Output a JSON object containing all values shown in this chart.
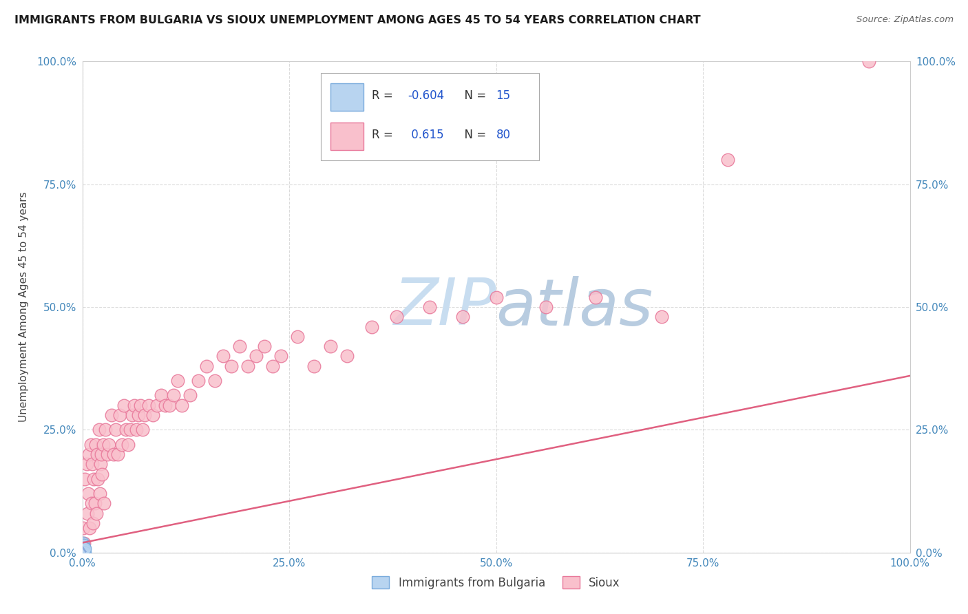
{
  "title": "IMMIGRANTS FROM BULGARIA VS SIOUX UNEMPLOYMENT AMONG AGES 45 TO 54 YEARS CORRELATION CHART",
  "source": "Source: ZipAtlas.com",
  "ylabel": "Unemployment Among Ages 45 to 54 years",
  "xlim": [
    0.0,
    1.0
  ],
  "ylim": [
    0.0,
    1.0
  ],
  "xtick_vals": [
    0.0,
    0.25,
    0.5,
    0.75,
    1.0
  ],
  "xtick_labels": [
    "0.0%",
    "25.0%",
    "50.0%",
    "75.0%",
    "100.0%"
  ],
  "ytick_vals": [
    0.0,
    0.25,
    0.5,
    0.75,
    1.0
  ],
  "ytick_labels": [
    "0.0%",
    "25.0%",
    "50.0%",
    "75.0%",
    "100.0%"
  ],
  "r_bulgaria": -0.604,
  "n_bulgaria": 15,
  "r_sioux": 0.615,
  "n_sioux": 80,
  "bulgaria_face": "#b8d4f0",
  "bulgaria_edge": "#7aabdc",
  "sioux_face": "#f9c0cc",
  "sioux_edge": "#e8789a",
  "sioux_line_color": "#e06080",
  "bulgaria_line_color": "#88aadd",
  "watermark_color": "#d0e4f4",
  "grid_color": "#d8d8d8",
  "bg_color": "#ffffff",
  "tick_color": "#4488bb",
  "legend_label_bulgaria": "Immigrants from Bulgaria",
  "legend_label_sioux": "Sioux",
  "sioux_x": [
    0.001,
    0.002,
    0.003,
    0.005,
    0.006,
    0.007,
    0.008,
    0.009,
    0.01,
    0.011,
    0.012,
    0.013,
    0.014,
    0.015,
    0.016,
    0.017,
    0.018,
    0.019,
    0.02,
    0.021,
    0.022,
    0.023,
    0.024,
    0.025,
    0.026,
    0.028,
    0.03,
    0.032,
    0.035,
    0.038,
    0.04,
    0.043,
    0.045,
    0.048,
    0.05,
    0.053,
    0.055,
    0.058,
    0.06,
    0.063,
    0.065,
    0.068,
    0.07,
    0.073,
    0.075,
    0.08,
    0.085,
    0.09,
    0.095,
    0.1,
    0.105,
    0.11,
    0.115,
    0.12,
    0.13,
    0.14,
    0.15,
    0.16,
    0.17,
    0.18,
    0.19,
    0.2,
    0.21,
    0.22,
    0.23,
    0.24,
    0.26,
    0.28,
    0.3,
    0.32,
    0.35,
    0.38,
    0.42,
    0.46,
    0.5,
    0.56,
    0.62,
    0.7,
    0.78,
    0.95
  ],
  "sioux_y": [
    0.05,
    0.02,
    0.15,
    0.18,
    0.08,
    0.12,
    0.2,
    0.05,
    0.22,
    0.1,
    0.18,
    0.06,
    0.15,
    0.1,
    0.22,
    0.08,
    0.2,
    0.15,
    0.25,
    0.12,
    0.18,
    0.2,
    0.16,
    0.22,
    0.1,
    0.25,
    0.2,
    0.22,
    0.28,
    0.2,
    0.25,
    0.2,
    0.28,
    0.22,
    0.3,
    0.25,
    0.22,
    0.25,
    0.28,
    0.3,
    0.25,
    0.28,
    0.3,
    0.25,
    0.28,
    0.3,
    0.28,
    0.3,
    0.32,
    0.3,
    0.3,
    0.32,
    0.35,
    0.3,
    0.32,
    0.35,
    0.38,
    0.35,
    0.4,
    0.38,
    0.42,
    0.38,
    0.4,
    0.42,
    0.38,
    0.4,
    0.44,
    0.38,
    0.42,
    0.4,
    0.46,
    0.48,
    0.5,
    0.48,
    0.52,
    0.5,
    0.52,
    0.48,
    0.8,
    1.0
  ],
  "bulgaria_x": [
    0.0001,
    0.0002,
    0.0003,
    0.0004,
    0.0005,
    0.0006,
    0.0007,
    0.0008,
    0.001,
    0.0012,
    0.0015,
    0.0018,
    0.002,
    0.0025,
    0.003
  ],
  "bulgaria_y": [
    0.005,
    0.01,
    0.0,
    0.015,
    0.005,
    0.02,
    0.0,
    0.01,
    0.005,
    0.015,
    0.0,
    0.01,
    0.005,
    0.0,
    0.008
  ]
}
